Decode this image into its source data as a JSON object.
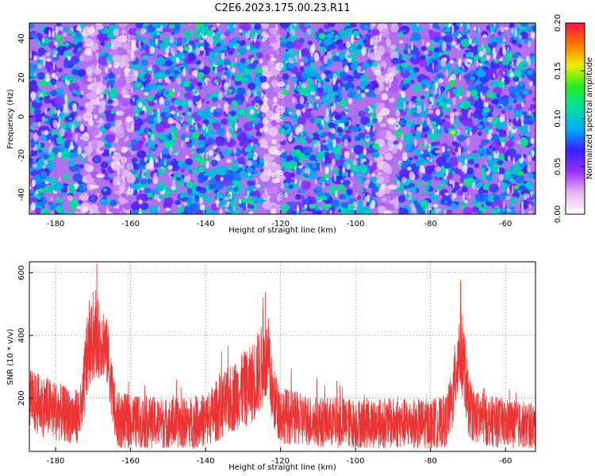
{
  "figure": {
    "title": "C2E6.2023.175.00.23.R11"
  },
  "chart_data": [
    {
      "type": "heatmap",
      "xlabel": "Height of straight line (km)",
      "ylabel": "Frequency (Hz)",
      "xlim": [
        -187,
        -52
      ],
      "ylim": [
        -50,
        48
      ],
      "xticks": [
        -180,
        -160,
        -140,
        -120,
        -100,
        -80,
        -60
      ],
      "yticks": [
        -40,
        -20,
        0,
        20,
        40
      ],
      "colorbar": {
        "label": "Normalized spectral amplitude",
        "range": [
          0.0,
          0.2
        ],
        "ticks": [
          "0.00",
          "0.05",
          "0.10",
          "0.15",
          "0.20"
        ],
        "colormap": [
          "#ffffff",
          "#e6b8f0",
          "#9b30ff",
          "#3b1cff",
          "#00aaff",
          "#00e0a0",
          "#22ee22",
          "#eeee00",
          "#ff7700",
          "#ff1040"
        ]
      },
      "grid": true,
      "bright_features": [
        {
          "x": -74,
          "y": -8,
          "value": 0.16
        },
        {
          "x": -158,
          "y": 16,
          "value": 0.13
        },
        {
          "x": -169,
          "y": -22,
          "value": 0.08
        },
        {
          "x": -170,
          "y": -42,
          "value": 0.08
        }
      ],
      "low_amplitude_bands": [
        -170,
        -162,
        -122,
        -92
      ]
    },
    {
      "type": "line",
      "xlabel": "Height of straight line (km)",
      "ylabel": "SNR (10 * v/v)",
      "xlim": [
        -187,
        -52
      ],
      "ylim": [
        30,
        635
      ],
      "xticks": [
        -180,
        -160,
        -140,
        -120,
        -100,
        -80,
        -60
      ],
      "yticks": [
        200,
        400,
        600
      ],
      "grid": true,
      "color": "#ee3333",
      "envelope": {
        "x": [
          -187,
          -182,
          -178,
          -175,
          -173,
          -172,
          -171,
          -169,
          -167,
          -166,
          -164,
          -160,
          -150,
          -145,
          -140,
          -136,
          -132,
          -128,
          -126,
          -124,
          -123,
          -122,
          -120,
          -116,
          -110,
          -100,
          -90,
          -80,
          -76,
          -74,
          -73,
          -72,
          -71,
          -70,
          -68,
          -64,
          -60,
          -56,
          -52
        ],
        "mean": [
          190,
          170,
          150,
          140,
          155,
          300,
          360,
          390,
          380,
          330,
          130,
          125,
          120,
          120,
          130,
          170,
          210,
          240,
          280,
          320,
          290,
          200,
          150,
          135,
          125,
          120,
          120,
          118,
          125,
          200,
          320,
          360,
          300,
          180,
          140,
          125,
          120,
          115,
          110
        ],
        "spread": [
          90,
          85,
          80,
          75,
          85,
          120,
          110,
          110,
          100,
          90,
          80,
          75,
          70,
          70,
          75,
          90,
          100,
          110,
          120,
          120,
          110,
          90,
          80,
          75,
          70,
          70,
          70,
          70,
          70,
          90,
          120,
          120,
          110,
          90,
          75,
          70,
          70,
          65,
          65
        ]
      },
      "peaks": [
        {
          "x": -169,
          "y": 630
        },
        {
          "x": -124,
          "y": 540
        },
        {
          "x": -72,
          "y": 575
        }
      ]
    }
  ]
}
